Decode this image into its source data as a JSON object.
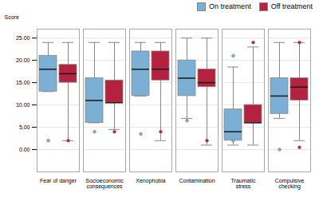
{
  "chart_data": {
    "type": "box",
    "categories": [
      "Fear of danger",
      "Socioeconomic\nconsequences",
      "Xenophobia",
      "Contamination",
      "Traumatic\nstress",
      "Compulsive\nchecking"
    ],
    "ylabel": "Score",
    "ylim": [
      -5.0,
      27.0
    ],
    "yticks": [
      {
        "value": 0,
        "label": "0.00"
      },
      {
        "value": 5,
        "label": "5.00"
      },
      {
        "value": 10,
        "label": "10.00"
      },
      {
        "value": 15,
        "label": "15.00"
      },
      {
        "value": 20,
        "label": "20.00"
      },
      {
        "value": 25,
        "label": "25.00"
      }
    ],
    "grid": true,
    "legend": "upper right",
    "series": [
      {
        "name": "On treatment",
        "color": "#7BAFD4",
        "whislo": [
          13.0,
          6.0,
          12.0,
          7.0,
          1.0,
          7.0
        ],
        "q1": [
          13.0,
          6.0,
          12.0,
          12.0,
          2.0,
          8.0
        ],
        "med": [
          18.0,
          11.0,
          18.0,
          16.0,
          4.0,
          12.0
        ],
        "q3": [
          21.0,
          16.0,
          22.0,
          20.0,
          9.0,
          16.0
        ],
        "whishi": [
          24.0,
          24.0,
          24.0,
          25.0,
          18.5,
          24.0
        ],
        "fliers_low": [
          2.0,
          4.0,
          3.5,
          6.5,
          2.0,
          0.0
        ],
        "fliers_high": [
          null,
          null,
          null,
          null,
          21.0,
          null
        ]
      },
      {
        "name": "Off treatment",
        "color": "#B52240",
        "whislo": [
          2.0,
          4.5,
          2.0,
          1.0,
          1.0,
          2.0
        ],
        "q1": [
          15.0,
          10.5,
          15.5,
          14.0,
          6.0,
          11.0
        ],
        "med": [
          17.0,
          10.5,
          18.0,
          15.0,
          6.0,
          14.0
        ],
        "q3": [
          19.0,
          15.5,
          22.0,
          18.0,
          10.0,
          16.0
        ],
        "whishi": [
          24.0,
          24.0,
          24.0,
          25.0,
          23.0,
          24.0
        ],
        "fliers_low": [
          2.0,
          4.0,
          4.0,
          2.0,
          null,
          0.5
        ],
        "fliers_high": [
          null,
          null,
          null,
          null,
          24.0,
          24.0
        ]
      }
    ]
  }
}
